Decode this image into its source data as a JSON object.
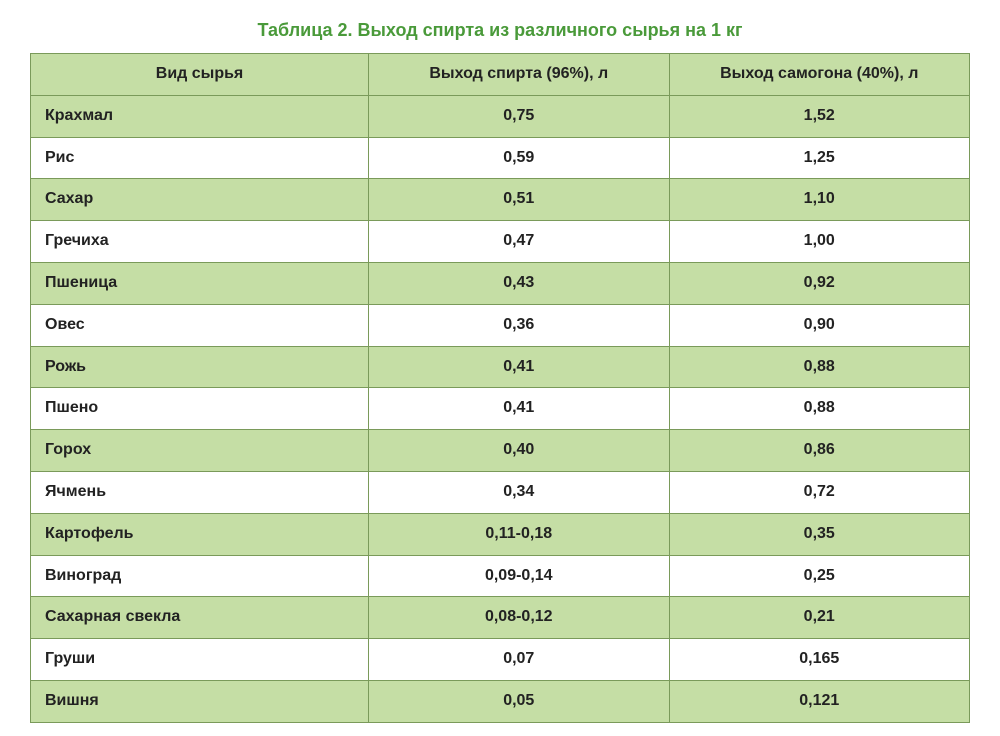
{
  "title": "Таблица 2. Выход спирта из различного сырья на 1 кг",
  "title_color": "#4a9a3a",
  "title_fontsize": 18,
  "table": {
    "border_color": "#7a9a5a",
    "header_bg": "#c5dea5",
    "row_odd_bg": "#c5dea5",
    "row_even_bg": "#ffffff",
    "text_color": "#222222",
    "body_fontsize": 16,
    "header_fontsize": 16,
    "columns": [
      "Вид сырья",
      "Выход спирта (96%), л",
      "Выход самогона (40%), л"
    ],
    "rows": [
      {
        "material": "Крахмал",
        "spirit": "0,75",
        "samogon": "1,52"
      },
      {
        "material": "Рис",
        "spirit": "0,59",
        "samogon": "1,25"
      },
      {
        "material": "Сахар",
        "spirit": "0,51",
        "samogon": "1,10"
      },
      {
        "material": "Гречиха",
        "spirit": "0,47",
        "samogon": "1,00"
      },
      {
        "material": "Пшеница",
        "spirit": "0,43",
        "samogon": "0,92"
      },
      {
        "material": "Овес",
        "spirit": "0,36",
        "samogon": "0,90"
      },
      {
        "material": "Рожь",
        "spirit": "0,41",
        "samogon": "0,88"
      },
      {
        "material": "Пшено",
        "spirit": "0,41",
        "samogon": "0,88"
      },
      {
        "material": "Горох",
        "spirit": "0,40",
        "samogon": "0,86"
      },
      {
        "material": "Ячмень",
        "spirit": "0,34",
        "samogon": "0,72"
      },
      {
        "material": "Картофель",
        "spirit": "0,11-0,18",
        "samogon": "0,35"
      },
      {
        "material": "Виноград",
        "spirit": "0,09-0,14",
        "samogon": "0,25"
      },
      {
        "material": "Сахарная свекла",
        "spirit": "0,08-0,12",
        "samogon": "0,21"
      },
      {
        "material": "Груши",
        "spirit": "0,07",
        "samogon": "0,165"
      },
      {
        "material": "Вишня",
        "spirit": "0,05",
        "samogon": "0,121"
      }
    ]
  }
}
